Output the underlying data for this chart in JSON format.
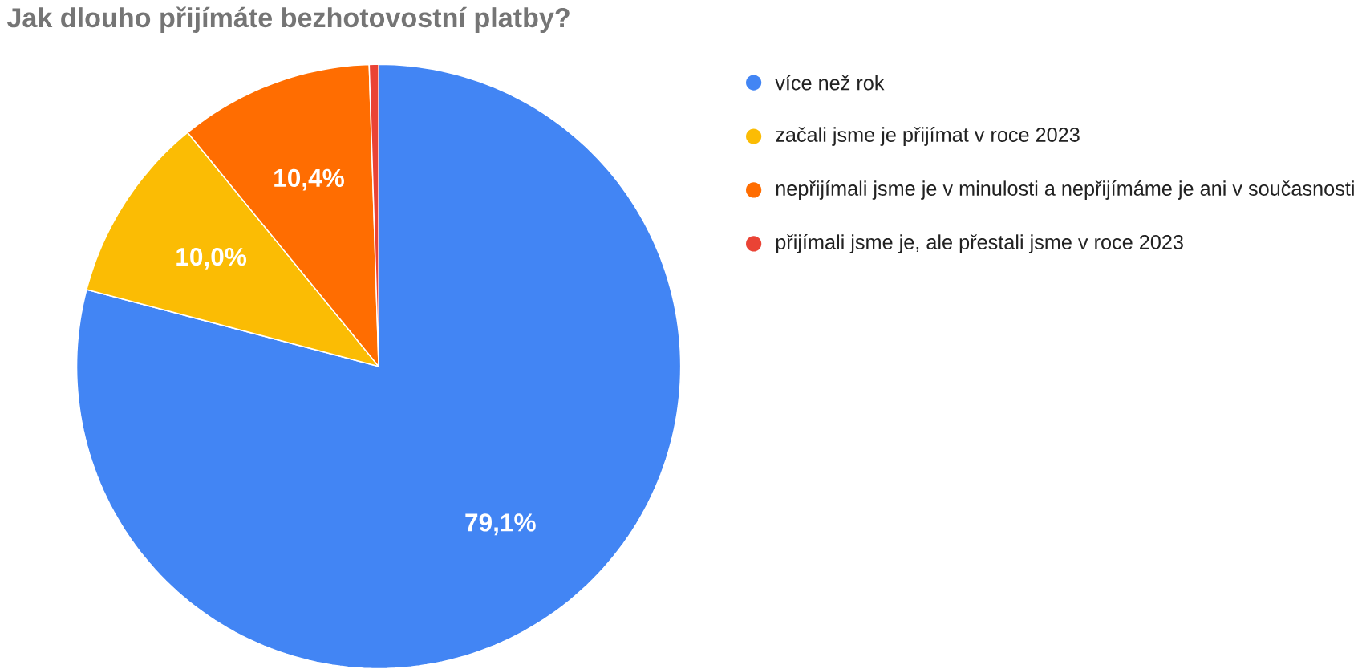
{
  "chart_data": {
    "type": "pie",
    "title": "Jak dlouho přijímáte bezhotovostní platby?",
    "categories": [
      "více než rok",
      "začali jsme je přijímat v roce 2023",
      "nepřijímali jsme je v minulosti a nepřijímáme je ani v současnosti",
      "přijímali jsme je, ale přestali jsme v roce 2023"
    ],
    "values": [
      79.1,
      10.0,
      10.4,
      0.5
    ],
    "colors": [
      "#4285f4",
      "#fbbc04",
      "#ff6d01",
      "#ea4335"
    ],
    "value_labels": [
      "79,1%",
      "10,0%",
      "10,4%",
      null
    ],
    "legend": "right"
  }
}
